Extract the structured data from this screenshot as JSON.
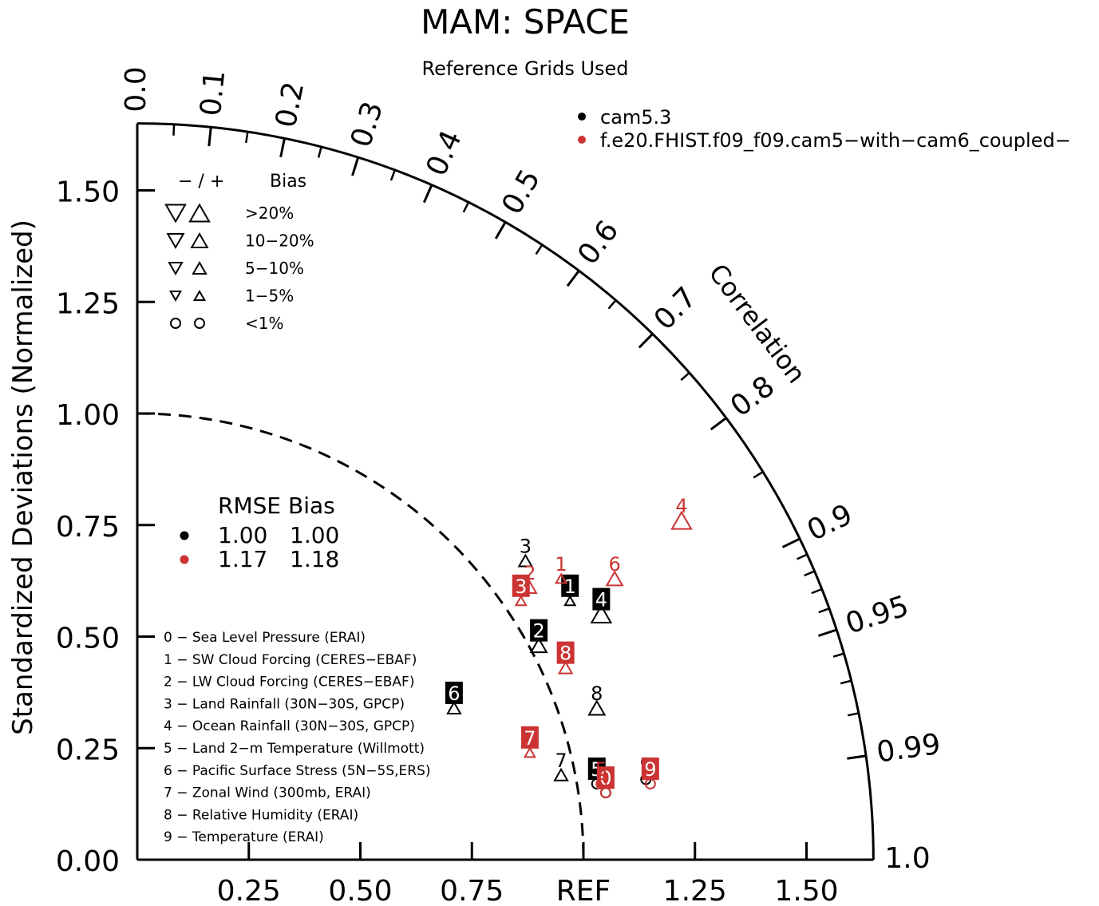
{
  "title": "MAM: SPACE",
  "subtitle": "Reference Grids Used",
  "colors": {
    "model1": "#000000",
    "model2": "#cc3333",
    "axis": "#000000"
  },
  "chart_data": {
    "type": "scatter",
    "subtype": "taylor-diagram",
    "ylabel": "Standardized Deviations (Normalized)",
    "correlation_label": "Correlation",
    "ref_label": "REF",
    "radial_max": 1.65,
    "y_ticks": [
      "0.00",
      "0.25",
      "0.50",
      "0.75",
      "1.00",
      "1.25",
      "1.50"
    ],
    "x_ticks": [
      "0.25",
      "0.50",
      "0.75",
      "1.25",
      "1.50"
    ],
    "correlation_ticks": [
      "0.0",
      "0.1",
      "0.2",
      "0.3",
      "0.4",
      "0.5",
      "0.6",
      "0.7",
      "0.8",
      "0.9",
      "0.95",
      "0.99",
      "1.0"
    ],
    "bias_legend": {
      "header_sign": "− / +",
      "header_label": "Bias",
      "rows": [
        {
          "label": ">20%",
          "symbol": "triangle",
          "level": 5
        },
        {
          "label": "10−20%",
          "symbol": "triangle",
          "level": 4
        },
        {
          "label": "5−10%",
          "symbol": "triangle",
          "level": 3
        },
        {
          "label": "1−5%",
          "symbol": "triangle",
          "level": 2
        },
        {
          "label": "<1%",
          "symbol": "circle",
          "level": 1
        }
      ]
    },
    "rmse_table": {
      "header": "RMSE Bias",
      "rows": [
        {
          "rmse": "1.00",
          "bias": "1.00",
          "series": 0
        },
        {
          "rmse": "1.17",
          "bias": "1.18",
          "series": 1
        }
      ]
    },
    "variables": [
      "0 − Sea Level Pressure (ERAI)",
      "1 − SW Cloud Forcing (CERES−EBAF)",
      "2 − LW Cloud Forcing (CERES−EBAF)",
      "3 − Land Rainfall (30N−30S, GPCP)",
      "4 − Ocean Rainfall (30N−30S, GPCP)",
      "5 − Land 2−m Temperature (Willmott)",
      "6 − Pacific Surface Stress (5N−5S,ERS)",
      "7 − Zonal Wind (300mb, ERAI)",
      "8 − Relative Humidity (ERAI)",
      "9 − Temperature (ERAI)"
    ],
    "series": [
      {
        "name": "cam5.3",
        "color": "#000000",
        "points": [
          {
            "id": "0",
            "x": 1.05,
            "y": 0.15,
            "bias": "circle",
            "dir": "none",
            "boxed": false
          },
          {
            "id": "1",
            "x": 0.97,
            "y": 0.58,
            "bias": "triangle",
            "dir": "up",
            "size": 2,
            "boxed": true
          },
          {
            "id": "2",
            "x": 0.9,
            "y": 0.48,
            "bias": "triangle",
            "dir": "up",
            "size": 4,
            "boxed": true
          },
          {
            "id": "3",
            "x": 0.87,
            "y": 0.67,
            "bias": "triangle",
            "dir": "up",
            "size": 3,
            "boxed": false
          },
          {
            "id": "4",
            "x": 1.04,
            "y": 0.55,
            "bias": "triangle",
            "dir": "up",
            "size": 5,
            "boxed": true
          },
          {
            "id": "5",
            "x": 1.03,
            "y": 0.17,
            "bias": "circle",
            "dir": "none",
            "boxed": true
          },
          {
            "id": "6",
            "x": 0.71,
            "y": 0.34,
            "bias": "triangle",
            "dir": "up",
            "size": 3,
            "boxed": true
          },
          {
            "id": "7",
            "x": 0.95,
            "y": 0.19,
            "bias": "triangle",
            "dir": "up",
            "size": 3,
            "boxed": false
          },
          {
            "id": "8",
            "x": 1.03,
            "y": 0.34,
            "bias": "triangle",
            "dir": "up",
            "size": 4,
            "boxed": false
          },
          {
            "id": "9",
            "x": 1.14,
            "y": 0.18,
            "bias": "circle",
            "dir": "none",
            "boxed": false
          }
        ]
      },
      {
        "name": "f.e20.FHIST.f09_f09.cam5−with−cam6_coupled−",
        "color": "#cc3333",
        "points": [
          {
            "id": "0",
            "x": 1.05,
            "y": 0.15,
            "bias": "circle",
            "dir": "none",
            "boxed": true
          },
          {
            "id": "1",
            "x": 0.95,
            "y": 0.63,
            "bias": "triangle",
            "dir": "up",
            "size": 2,
            "boxed": false
          },
          {
            "id": "2",
            "x": 0.88,
            "y": 0.61,
            "bias": "triangle",
            "dir": "up",
            "size": 3,
            "boxed": false
          },
          {
            "id": "3",
            "x": 0.86,
            "y": 0.58,
            "bias": "triangle",
            "dir": "up",
            "size": 2,
            "boxed": true
          },
          {
            "id": "4",
            "x": 1.22,
            "y": 0.76,
            "bias": "triangle",
            "dir": "up",
            "size": 5,
            "boxed": false
          },
          {
            "id": "5",
            "x": 1.04,
            "y": 0.17,
            "bias": "circle",
            "dir": "none",
            "boxed": false
          },
          {
            "id": "6",
            "x": 1.07,
            "y": 0.63,
            "bias": "triangle",
            "dir": "up",
            "size": 4,
            "boxed": false
          },
          {
            "id": "7",
            "x": 0.88,
            "y": 0.24,
            "bias": "triangle",
            "dir": "up",
            "size": 2,
            "boxed": true
          },
          {
            "id": "8",
            "x": 0.96,
            "y": 0.43,
            "bias": "triangle",
            "dir": "up",
            "size": 3,
            "boxed": true
          },
          {
            "id": "9",
            "x": 1.15,
            "y": 0.17,
            "bias": "circle",
            "dir": "none",
            "boxed": true
          }
        ]
      }
    ]
  }
}
